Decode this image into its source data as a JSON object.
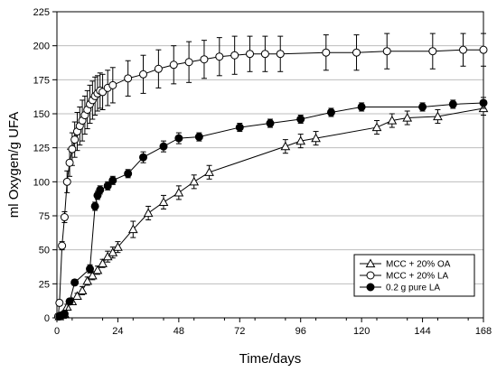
{
  "chart_data": {
    "type": "scatter",
    "xlabel": "Time/days",
    "ylabel": "ml Oxygen/g UFA",
    "xlim": [
      0,
      168
    ],
    "ylim": [
      0,
      225
    ],
    "xticks": [
      0,
      24,
      48,
      72,
      96,
      120,
      144,
      168
    ],
    "yticks": [
      0,
      25,
      50,
      75,
      100,
      125,
      150,
      175,
      200,
      225
    ],
    "grid": "horizontal",
    "legend_position": "bottom-right",
    "series": [
      {
        "name": "MCC + 20% OA",
        "marker": "triangle-open",
        "x": [
          1,
          2,
          3,
          4,
          6,
          8,
          10,
          12,
          14,
          16,
          18,
          20,
          22,
          24,
          30,
          36,
          42,
          48,
          54,
          60,
          90,
          96,
          102,
          126,
          132,
          138,
          150,
          168
        ],
        "y": [
          1,
          2,
          3,
          8,
          12,
          16,
          20,
          27,
          31,
          35,
          40,
          45,
          48,
          52,
          65,
          77,
          85,
          92,
          100,
          107,
          126,
          130,
          132,
          140,
          145,
          147,
          148,
          154
        ],
        "err": [
          1,
          1,
          1,
          2,
          2,
          2,
          3,
          3,
          3,
          3,
          3,
          4,
          4,
          4,
          6,
          5,
          5,
          5,
          5,
          5,
          5,
          5,
          5,
          5,
          5,
          5,
          5,
          5
        ]
      },
      {
        "name": "MCC + 20% LA",
        "marker": "circle-open",
        "x": [
          0.5,
          1,
          2,
          3,
          4,
          5,
          6,
          7,
          8,
          9,
          10,
          11,
          12,
          13,
          14,
          15,
          16,
          17,
          18,
          20,
          22,
          28,
          34,
          40,
          46,
          52,
          58,
          64,
          70,
          76,
          82,
          88,
          106,
          118,
          130,
          148,
          160,
          168
        ],
        "y": [
          1,
          11,
          53,
          74,
          100,
          114,
          124,
          131,
          137,
          141,
          145,
          149,
          153,
          157,
          160,
          163,
          165,
          167,
          166,
          169,
          171,
          176,
          179,
          183,
          186,
          188,
          190,
          192,
          193,
          194,
          194,
          194,
          195,
          195,
          196,
          196,
          197,
          197
        ],
        "err": [
          0,
          2,
          3,
          4,
          8,
          10,
          12,
          13,
          14,
          14,
          15,
          14,
          14,
          14,
          14,
          14,
          13,
          13,
          13,
          13,
          13,
          13,
          14,
          14,
          14,
          15,
          14,
          14,
          14,
          13,
          13,
          13,
          13,
          13,
          13,
          13,
          12,
          12
        ]
      },
      {
        "name": "0.2 g pure LA",
        "marker": "circle-filled",
        "x": [
          1,
          2,
          3,
          5,
          7,
          13,
          15,
          16,
          17,
          20,
          22,
          28,
          34,
          42,
          48,
          56,
          72,
          84,
          96,
          108,
          120,
          144,
          156,
          168
        ],
        "y": [
          1,
          2,
          3,
          12,
          26,
          36,
          82,
          90,
          94,
          97,
          101,
          106,
          118,
          126,
          132,
          133,
          140,
          143,
          146,
          151,
          155,
          155,
          157,
          158
        ],
        "err": [
          1,
          1,
          1,
          2,
          2,
          3,
          3,
          3,
          3,
          3,
          3,
          3,
          4,
          4,
          4,
          3,
          3,
          3,
          3,
          3,
          3,
          3,
          3,
          4
        ]
      }
    ]
  }
}
